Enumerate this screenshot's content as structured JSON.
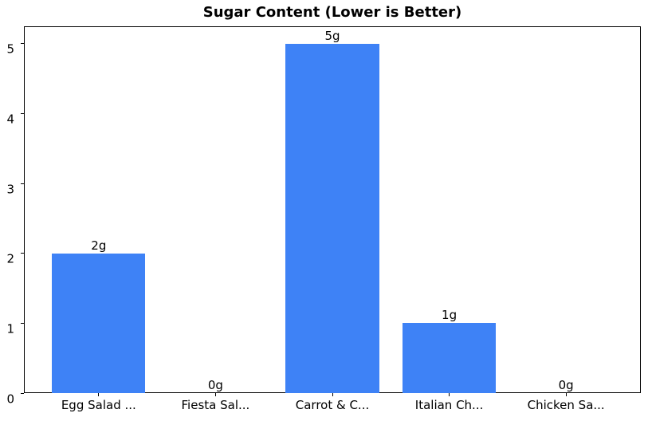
{
  "chart_data": {
    "type": "bar",
    "title": "Sugar Content (Lower is Better)",
    "categories": [
      "Egg Salad ...",
      "Fiesta Sal...",
      "Carrot & C...",
      "Italian Ch...",
      "Chicken Sa..."
    ],
    "values": [
      2,
      0,
      5,
      1,
      0
    ],
    "bar_labels": [
      "2g",
      "0g",
      "5g",
      "1g",
      "0g"
    ],
    "xlabel": "",
    "ylabel": "",
    "yticks": [
      0,
      1,
      2,
      3,
      4,
      5
    ],
    "ylim": [
      0,
      5.25
    ],
    "bar_width_fraction": 0.8,
    "grid": false,
    "legend": false,
    "bar_color": "#3e82f6",
    "text_color": "#000000",
    "spine_color": "#000000",
    "background_color": "#ffffff"
  }
}
